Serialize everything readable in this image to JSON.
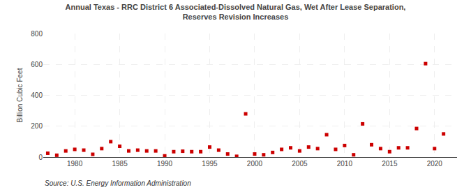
{
  "chart_data": {
    "type": "scatter",
    "title": "Annual Texas - RRC District 6 Associated-Dissolved Natural Gas, Wet After Lease Separation,\nReserves Revision Increases",
    "ylabel": "Billion Cubic Feet",
    "annotations": [
      "Source: U.S. Energy Information Administration"
    ],
    "x": [
      1977,
      1978,
      1979,
      1980,
      1981,
      1982,
      1983,
      1984,
      1985,
      1986,
      1987,
      1988,
      1989,
      1990,
      1991,
      1992,
      1993,
      1994,
      1995,
      1996,
      1997,
      1998,
      1999,
      2000,
      2001,
      2002,
      2003,
      2004,
      2005,
      2006,
      2007,
      2008,
      2009,
      2010,
      2011,
      2012,
      2013,
      2014,
      2015,
      2016,
      2017,
      2018,
      2019,
      2020,
      2021
    ],
    "values": [
      25,
      12,
      40,
      50,
      45,
      18,
      55,
      100,
      70,
      40,
      45,
      40,
      40,
      8,
      35,
      38,
      35,
      35,
      65,
      45,
      20,
      5,
      280,
      20,
      15,
      30,
      50,
      60,
      40,
      65,
      55,
      145,
      50,
      75,
      15,
      215,
      80,
      55,
      35,
      60,
      60,
      185,
      605,
      55,
      150
    ],
    "color": "#cc0000",
    "marker": "square",
    "xlim": [
      1976.5,
      2022.5
    ],
    "xticks": [
      1980,
      1985,
      1990,
      1995,
      2000,
      2005,
      2010,
      2015,
      2020
    ],
    "ylim": [
      0,
      800
    ],
    "yticks": [
      0,
      200,
      400,
      600,
      800
    ],
    "grid": true
  }
}
